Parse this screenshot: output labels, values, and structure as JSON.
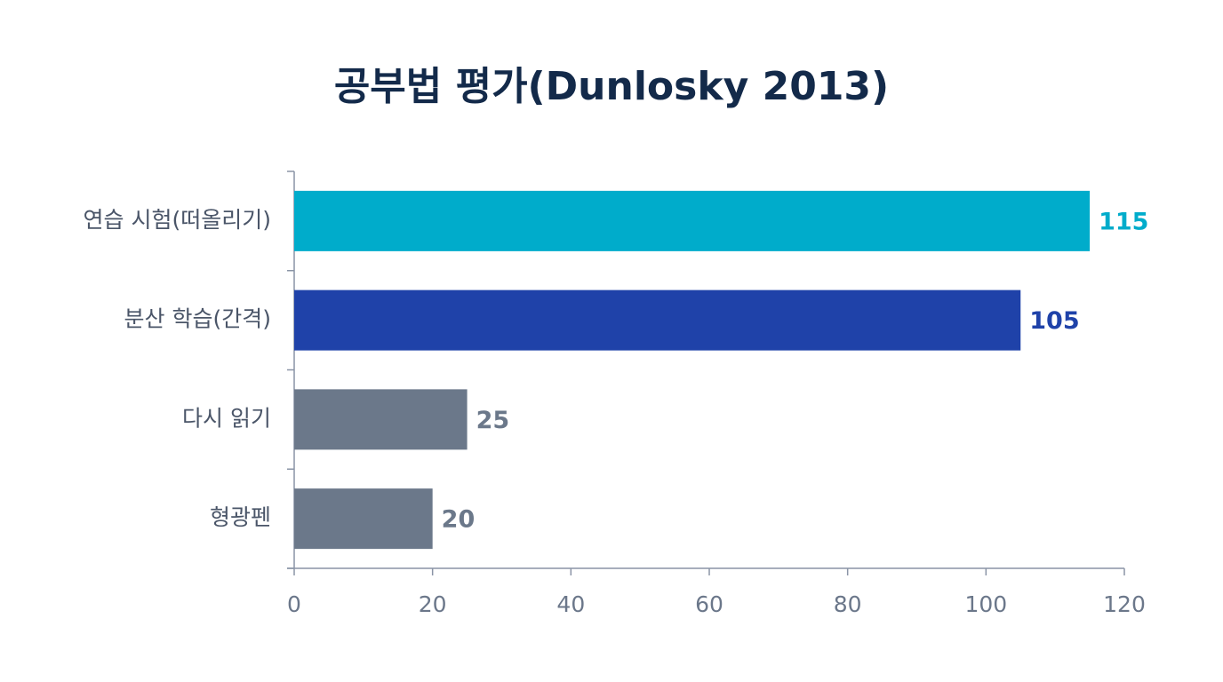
{
  "chart_data": {
    "type": "hbar",
    "title": "공부법 평가(Dunlosky 2013)",
    "categories": [
      "연습 시험(떠올리기)",
      "분산 학습(간격)",
      "다시 읽기",
      "형광펜"
    ],
    "values": [
      115,
      105,
      25,
      20
    ],
    "colors": [
      "#00accb",
      "#1f42a9",
      "#6b788a",
      "#6b788a"
    ],
    "xlim": [
      0,
      120
    ],
    "xticks": [
      0,
      20,
      40,
      60,
      80,
      100,
      120
    ]
  }
}
